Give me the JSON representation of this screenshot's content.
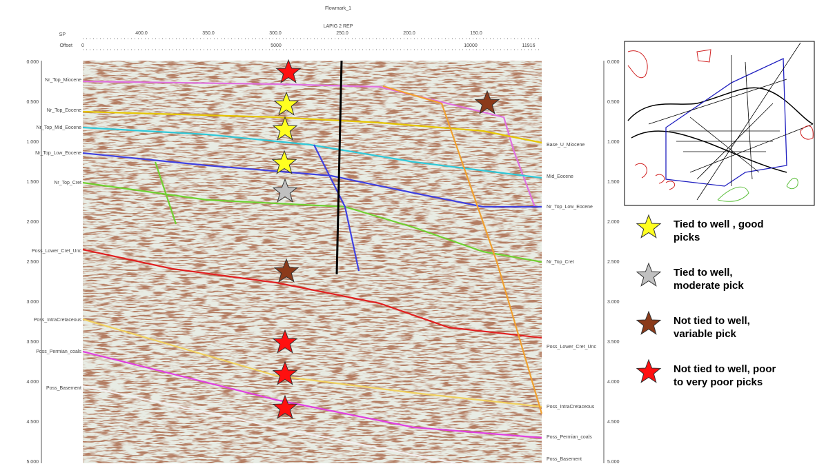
{
  "header": {
    "title": "Flowmark_1",
    "subtitle": "LAPIG 2 REP",
    "sp_label": "SP",
    "offset_label": "Offset"
  },
  "sp_ticks": [
    "400.0",
    "350.0",
    "300.0",
    "250.0",
    "200.0",
    "150.0"
  ],
  "offset_ticks": [
    "0",
    "5000",
    "10000",
    "11916"
  ],
  "depth_ticks": [
    "0.000",
    "0.500",
    "1.000",
    "1.500",
    "2.000",
    "2.500",
    "3.000",
    "3.500",
    "4.000",
    "4.500",
    "5.000"
  ],
  "left_labels": [
    "Nr_Top_Miocene",
    "Nr_Top_Eocene",
    "Nr_Top_Mid_Eocene",
    "Nr_Top_Low_Eocene",
    "Nr_Top_Cret",
    "Poss_Lower_Cret_Unc",
    "Poss_IntraCretaceous",
    "Poss_Permian_coals",
    "Poss_Basement"
  ],
  "right_labels": [
    "Base_U_Miocene",
    "Mid_Eocene",
    "Nr_Top_Low_Eocene",
    "Nr_Top_Cret",
    "Poss_Lower_Cret_Unc",
    "Poss_IntraCretaceous",
    "Poss_Permian_coals",
    "Poss_Basement"
  ],
  "legend": [
    {
      "line1": "Tied to well , good",
      "line2": "picks"
    },
    {
      "line1": "Tied to well,",
      "line2": "moderate pick"
    },
    {
      "line1": "Not tied to well,",
      "line2": "variable pick"
    },
    {
      "line1": "Not tied to well, poor",
      "line2": "to very poor picks"
    }
  ]
}
